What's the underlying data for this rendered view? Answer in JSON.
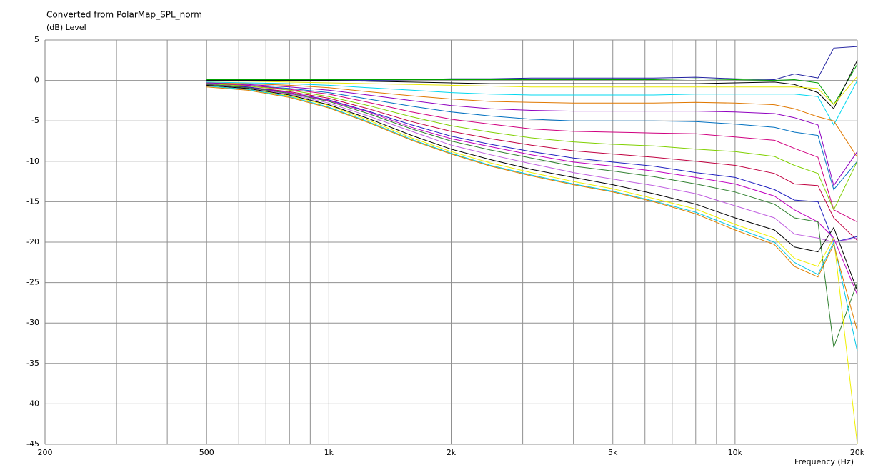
{
  "chart_data": {
    "type": "line",
    "title": "Converted from PolarMap_SPL_norm",
    "y_label": "(dB) Level",
    "x_label": "Frequency (Hz)",
    "xscale": "log",
    "grid": true,
    "xlim": [
      200,
      20000
    ],
    "xticks": [
      200,
      500,
      {
        "value": 1000,
        "label": "1k"
      },
      {
        "value": 2000,
        "label": "2k"
      },
      {
        "value": 5000,
        "label": "5k"
      },
      {
        "value": 10000,
        "label": "10k"
      },
      {
        "value": 20000,
        "label": "20k"
      }
    ],
    "xminor": [
      300,
      400,
      600,
      700,
      800,
      900,
      3000,
      4000,
      6000,
      7000,
      8000,
      9000
    ],
    "ylim": [
      -45,
      5
    ],
    "yticks": [
      5,
      0,
      -5,
      -10,
      -15,
      -20,
      -25,
      -30,
      -35,
      -40,
      -45
    ],
    "x": [
      500,
      630,
      800,
      1000,
      1250,
      1600,
      2000,
      2500,
      3150,
      4000,
      5000,
      6300,
      8000,
      10000,
      12500,
      14000,
      16000,
      17500,
      20000
    ],
    "series": [
      {
        "color": "#2020a0",
        "values": [
          0,
          0,
          0,
          0,
          0,
          0.1,
          0.2,
          0.2,
          0.3,
          0.3,
          0.3,
          0.3,
          0.4,
          0.2,
          0.1,
          0.8,
          0.3,
          4,
          4.2
        ]
      },
      {
        "color": "#00a000",
        "values": [
          0.1,
          0.1,
          0.1,
          0.1,
          0.1,
          0.1,
          0.1,
          0.1,
          0.1,
          0.1,
          0.1,
          0.1,
          0.2,
          0.1,
          0,
          0.1,
          -0.3,
          -3,
          2
        ]
      },
      {
        "color": "#000000",
        "values": [
          0,
          0,
          0,
          0,
          -0.1,
          -0.2,
          -0.3,
          -0.4,
          -0.4,
          -0.4,
          -0.4,
          -0.4,
          -0.4,
          -0.3,
          -0.2,
          -0.5,
          -1.5,
          -3.5,
          2.5
        ]
      },
      {
        "color": "#e8e800",
        "values": [
          -0.1,
          -0.1,
          -0.2,
          -0.3,
          -0.4,
          -0.5,
          -0.6,
          -0.7,
          -0.8,
          -0.8,
          -0.8,
          -0.8,
          -0.8,
          -0.8,
          -0.8,
          -0.8,
          -1,
          -3,
          0.5
        ]
      },
      {
        "color": "#00d8f0",
        "values": [
          -0.2,
          -0.3,
          -0.4,
          -0.6,
          -0.9,
          -1.2,
          -1.5,
          -1.7,
          -1.8,
          -1.8,
          -1.8,
          -1.8,
          -1.7,
          -1.7,
          -1.7,
          -1.7,
          -2,
          -5.5,
          0
        ]
      },
      {
        "color": "#e07800",
        "values": [
          -0.3,
          -0.4,
          -0.6,
          -0.9,
          -1.4,
          -1.9,
          -2.3,
          -2.6,
          -2.7,
          -2.8,
          -2.8,
          -2.8,
          -2.7,
          -2.8,
          -3,
          -3.5,
          -4.5,
          -5,
          -9.5
        ]
      },
      {
        "color": "#9000c0",
        "values": [
          -0.3,
          -0.5,
          -0.8,
          -1.2,
          -1.8,
          -2.5,
          -3.1,
          -3.5,
          -3.7,
          -3.8,
          -3.8,
          -3.8,
          -3.8,
          -3.9,
          -4.1,
          -4.6,
          -5.5,
          -13,
          -8.8
        ]
      },
      {
        "color": "#0070c0",
        "values": [
          -0.4,
          -0.6,
          -1,
          -1.5,
          -2.3,
          -3.2,
          -3.9,
          -4.4,
          -4.8,
          -5,
          -5,
          -5,
          -5.1,
          -5.4,
          -5.8,
          -6.4,
          -6.8,
          -13.5,
          -10
        ]
      },
      {
        "color": "#d00080",
        "values": [
          -0.4,
          -0.6,
          -1.1,
          -1.7,
          -2.7,
          -3.9,
          -4.8,
          -5.4,
          -6,
          -6.3,
          -6.4,
          -6.5,
          -6.6,
          -7,
          -7.4,
          -8.4,
          -9.5,
          -16,
          -17.5
        ]
      },
      {
        "color": "#80d000",
        "values": [
          -0.4,
          -0.7,
          -1.2,
          -2,
          -3.1,
          -4.5,
          -5.6,
          -6.4,
          -7.1,
          -7.6,
          -7.9,
          -8.1,
          -8.5,
          -8.8,
          -9.4,
          -10.5,
          -11.5,
          -16,
          -10
        ]
      },
      {
        "color": "#c00040",
        "values": [
          -0.5,
          -0.8,
          -1.4,
          -2.2,
          -3.5,
          -5.1,
          -6.3,
          -7.2,
          -8,
          -8.7,
          -9.1,
          -9.5,
          -10,
          -10.5,
          -11.5,
          -12.8,
          -13,
          -17,
          -19.8
        ]
      },
      {
        "color": "#2020c0",
        "values": [
          -0.5,
          -0.8,
          -1.5,
          -2.4,
          -3.8,
          -5.5,
          -6.9,
          -7.9,
          -8.8,
          -9.6,
          -10.1,
          -10.6,
          -11.4,
          -12,
          -13.5,
          -14.8,
          -15,
          -20,
          -19.3
        ]
      },
      {
        "color": "#c000c0",
        "values": [
          -0.5,
          -0.9,
          -1.5,
          -2.5,
          -3.9,
          -5.8,
          -7.2,
          -8.2,
          -9.2,
          -10.1,
          -10.6,
          -11.2,
          -12,
          -12.8,
          -14.3,
          -16,
          -17.5,
          -19.5,
          -26.5
        ]
      },
      {
        "color": "#308030",
        "values": [
          -0.5,
          -0.9,
          -1.6,
          -2.6,
          -4.1,
          -6,
          -7.5,
          -8.6,
          -9.6,
          -10.6,
          -11.2,
          -11.9,
          -12.8,
          -13.8,
          -15.3,
          -17,
          -17.5,
          -33,
          -25
        ]
      },
      {
        "color": "#c060e0",
        "values": [
          -0.6,
          -1,
          -1.7,
          -2.8,
          -4.4,
          -6.3,
          -8,
          -9.2,
          -10.3,
          -11.4,
          -12.2,
          -13,
          -14,
          -15.5,
          -17,
          -19,
          -19.5,
          -20,
          -19.5
        ]
      },
      {
        "color": "#000000",
        "values": [
          -0.6,
          -1,
          -1.8,
          -3,
          -4.7,
          -6.8,
          -8.5,
          -9.8,
          -11,
          -12,
          -12.9,
          -14,
          -15.3,
          -17,
          -18.5,
          -20.6,
          -21.2,
          -18.2,
          -26
        ]
      },
      {
        "color": "#f0f000",
        "values": [
          -0.7,
          -1.1,
          -1.9,
          -3.1,
          -4.9,
          -7.1,
          -8.8,
          -10.2,
          -11.4,
          -12.5,
          -13.4,
          -14.6,
          -15.9,
          -17.8,
          -19.5,
          -22,
          -23,
          -19.5,
          -45
        ]
      },
      {
        "color": "#00c8e8",
        "values": [
          -0.7,
          -1.1,
          -2,
          -3.3,
          -5.1,
          -7.3,
          -9,
          -10.5,
          -11.7,
          -12.8,
          -13.7,
          -14.9,
          -16.3,
          -18.2,
          -20,
          -22.5,
          -24,
          -20,
          -33.5
        ]
      },
      {
        "color": "#e08000",
        "values": [
          -0.8,
          -1.2,
          -2.1,
          -3.4,
          -5.2,
          -7.4,
          -9.1,
          -10.6,
          -11.8,
          -12.9,
          -13.8,
          -15,
          -16.5,
          -18.5,
          -20.3,
          -23,
          -24.3,
          -20.3,
          -31
        ]
      }
    ]
  }
}
